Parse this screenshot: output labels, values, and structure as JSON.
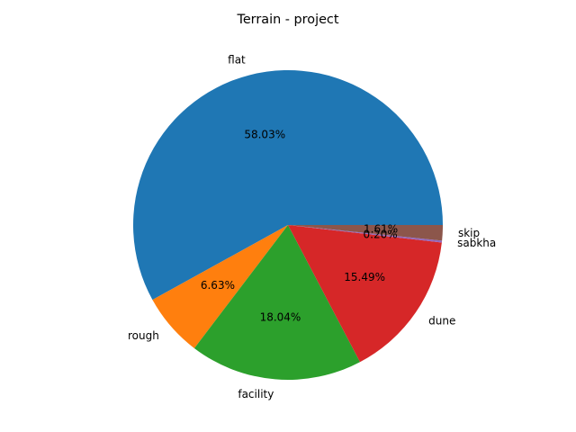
{
  "chart_data": {
    "type": "pie",
    "title": "Terrain - project",
    "start_angle_deg": 0,
    "direction": "counterclockwise",
    "slices": [
      {
        "label": "flat",
        "value": 58.03,
        "display": "58.03%",
        "color": "#1f77b4"
      },
      {
        "label": "rough",
        "value": 6.63,
        "display": "6.63%",
        "color": "#ff7f0e"
      },
      {
        "label": "facility",
        "value": 18.04,
        "display": "18.04%",
        "color": "#2ca02c"
      },
      {
        "label": "dune",
        "value": 15.49,
        "display": "15.49%",
        "color": "#d62728"
      },
      {
        "label": "sabkha",
        "value": 0.2,
        "display": "0.20%",
        "color": "#9467bd"
      },
      {
        "label": "skip",
        "value": 1.61,
        "display": "1.61%",
        "color": "#8c564b"
      }
    ]
  }
}
